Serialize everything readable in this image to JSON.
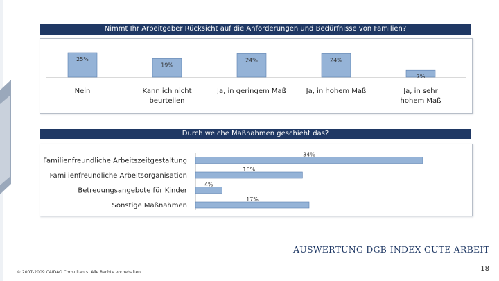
{
  "chart_data": [
    {
      "type": "bar",
      "title": "Nimmt Ihr Arbeitgeber Rücksicht auf die Anforderungen und Bedürfnisse von Familien?",
      "categories": [
        "Nein",
        "Kann ich nicht beurteilen",
        "Ja, in geringem Maß",
        "Ja, in hohem Maß",
        "Ja, in sehr hohem Maß"
      ],
      "values": [
        25,
        19,
        24,
        24,
        7
      ],
      "value_labels": [
        "25%",
        "19%",
        "24%",
        "24%",
        "7%"
      ],
      "xlabel": "",
      "ylabel": "",
      "ylim": [
        0,
        25
      ],
      "grid": false
    },
    {
      "type": "bar",
      "orientation": "horizontal",
      "title": "Durch welche Maßnahmen geschieht das?",
      "categories": [
        "Familienfreundliche Arbeitszeitgestaltung",
        "Familienfreundliche Arbeitsorganisation",
        "Betreuungsangebote für Kinder",
        "Sonstige Maßnahmen"
      ],
      "values": [
        34,
        16,
        4,
        17
      ],
      "value_labels": [
        "34%",
        "16%",
        "4%",
        "17%"
      ],
      "xlabel": "",
      "ylabel": "",
      "xlim": [
        0,
        34
      ],
      "grid": false
    }
  ],
  "colors": {
    "header_bg": "#1f3864",
    "bar_fill": "#95b3d7",
    "bar_stroke": "#5b7fb0",
    "footer_title": "#1f3864"
  },
  "footer": {
    "title": "AUSWERTUNG DGB-INDEX GUTE ARBEIT",
    "copyright": "© 2007-2009 CAIDAO Consultants. Alle Rechte vorbehalten.",
    "page_number": "18"
  }
}
